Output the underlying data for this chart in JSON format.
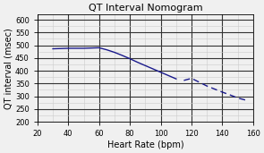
{
  "title": "QT Interval Nomogram",
  "xlabel": "Heart Rate (bpm)",
  "ylabel": "QT interval (msec)",
  "xlim": [
    20,
    160
  ],
  "ylim": [
    200,
    620
  ],
  "xticks_major": [
    20,
    40,
    60,
    80,
    100,
    120,
    140,
    160
  ],
  "yticks_major": [
    200,
    250,
    300,
    350,
    400,
    450,
    500,
    550,
    600
  ],
  "line_color": "#1a1a8c",
  "major_grid_color": "#333333",
  "minor_grid_color": "#cccccc",
  "background_color": "#f0f0f0",
  "fig_background": "#f0f0f0",
  "curve_hr": [
    30,
    35,
    40,
    45,
    50,
    55,
    60,
    65,
    70,
    75,
    80,
    85,
    90,
    95,
    100,
    105,
    110,
    115,
    120,
    125,
    130,
    135,
    140,
    145,
    150,
    155
  ],
  "curve_qt": [
    486,
    487,
    488,
    488,
    488,
    489,
    490,
    482,
    472,
    460,
    447,
    433,
    420,
    407,
    394,
    381,
    368,
    362,
    370,
    355,
    340,
    328,
    316,
    305,
    293,
    285
  ],
  "solid_end_hr": 112,
  "title_fontsize": 8,
  "label_fontsize": 7,
  "tick_fontsize": 6
}
